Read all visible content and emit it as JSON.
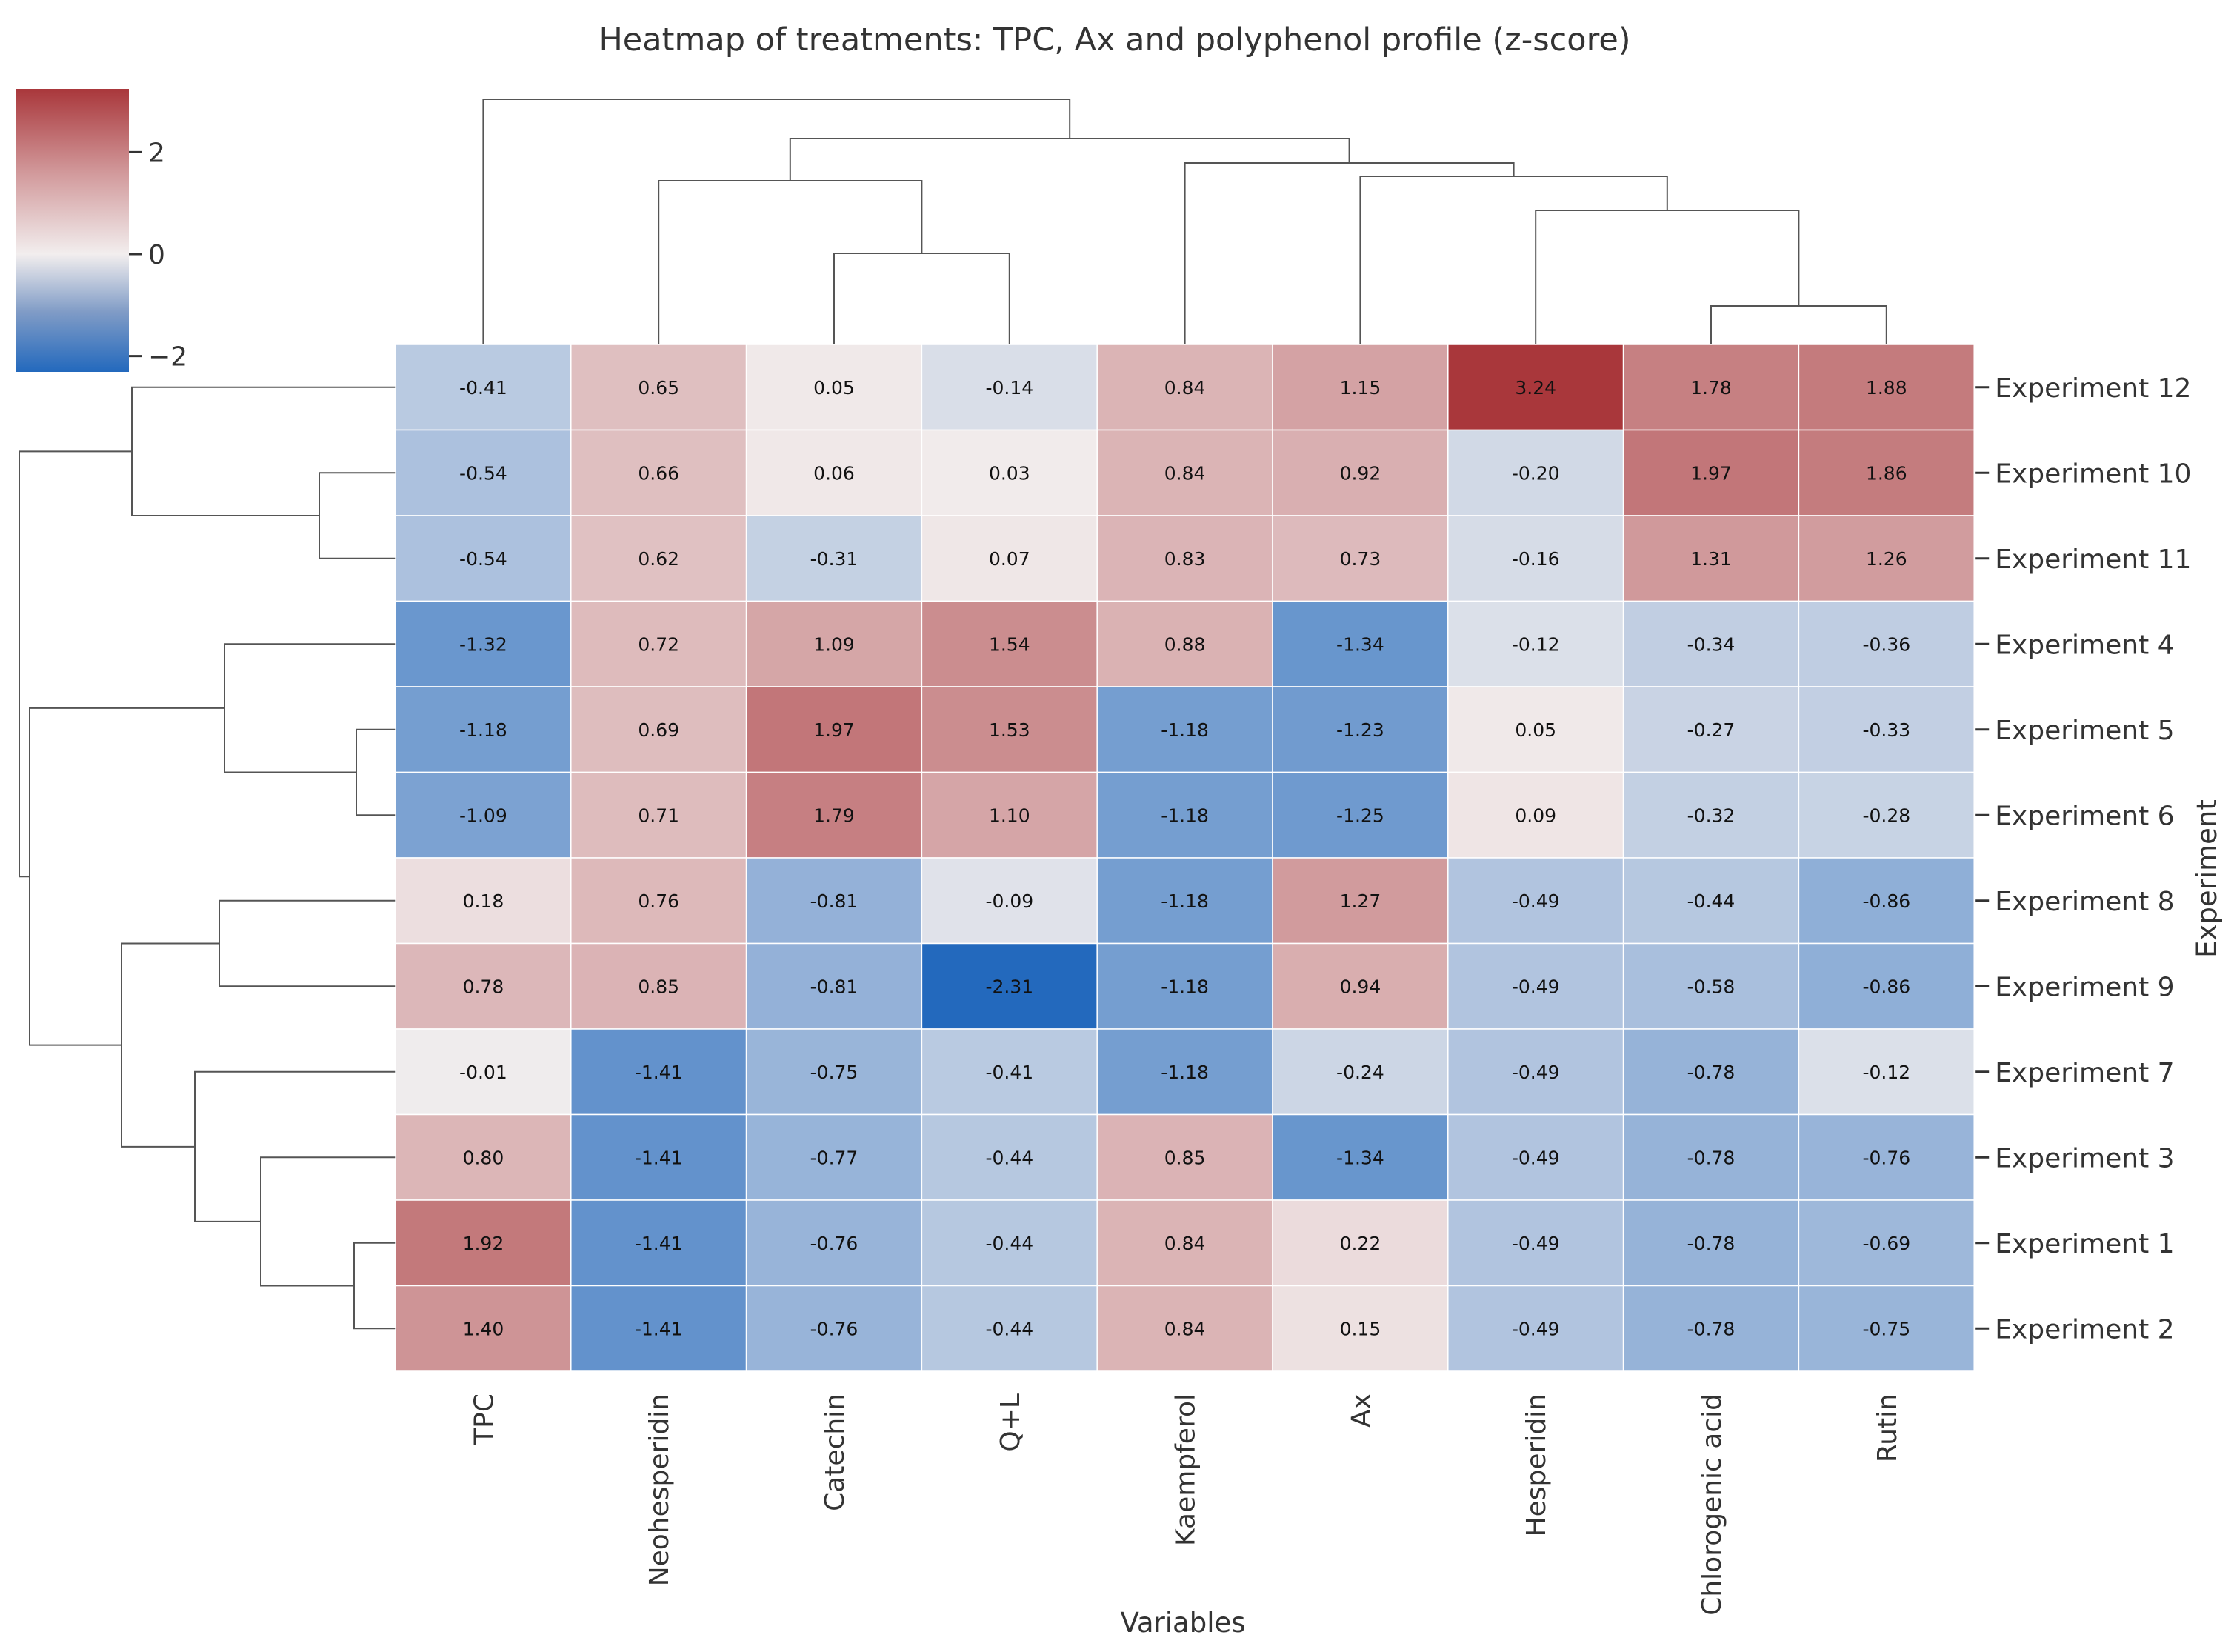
{
  "chart_data": {
    "type": "heatmap",
    "title": "Heatmap of treatments: TPC, Ax and polyphenol profile (z-score)",
    "xlabel": "Variables",
    "ylabel": "Experiment",
    "columns": [
      "TPC",
      "Neohesperidin",
      "Catechin",
      "Q+L",
      "Kaempferol",
      "Ax",
      "Hesperidin",
      "Chlorogenic acid",
      "Rutin"
    ],
    "rows": [
      "Experiment 12",
      "Experiment 10",
      "Experiment 11",
      "Experiment 4",
      "Experiment 5",
      "Experiment 6",
      "Experiment 8",
      "Experiment 9",
      "Experiment 7",
      "Experiment 3",
      "Experiment 1",
      "Experiment 2"
    ],
    "values": [
      [
        -0.41,
        0.65,
        0.05,
        -0.14,
        0.84,
        1.15,
        3.24,
        1.78,
        1.88
      ],
      [
        -0.54,
        0.66,
        0.06,
        0.03,
        0.84,
        0.92,
        -0.2,
        1.97,
        1.86
      ],
      [
        -0.54,
        0.62,
        -0.31,
        0.07,
        0.83,
        0.73,
        -0.16,
        1.31,
        1.26
      ],
      [
        -1.32,
        0.72,
        1.09,
        1.54,
        0.88,
        -1.34,
        -0.12,
        -0.34,
        -0.36
      ],
      [
        -1.18,
        0.69,
        1.97,
        1.53,
        -1.18,
        -1.23,
        0.05,
        -0.27,
        -0.33
      ],
      [
        -1.09,
        0.71,
        1.79,
        1.1,
        -1.18,
        -1.25,
        0.09,
        -0.32,
        -0.28
      ],
      [
        0.18,
        0.76,
        -0.81,
        -0.09,
        -1.18,
        1.27,
        -0.49,
        -0.44,
        -0.86
      ],
      [
        0.78,
        0.85,
        -0.81,
        -2.31,
        -1.18,
        0.94,
        -0.49,
        -0.58,
        -0.86
      ],
      [
        -0.01,
        -1.41,
        -0.75,
        -0.41,
        -1.18,
        -0.24,
        -0.49,
        -0.78,
        -0.12
      ],
      [
        0.8,
        -1.41,
        -0.77,
        -0.44,
        0.85,
        -1.34,
        -0.49,
        -0.78,
        -0.76
      ],
      [
        1.92,
        -1.41,
        -0.76,
        -0.44,
        0.84,
        0.22,
        -0.49,
        -0.78,
        -0.69
      ],
      [
        1.4,
        -1.41,
        -0.76,
        -0.44,
        0.84,
        0.15,
        -0.49,
        -0.78,
        -0.75
      ]
    ],
    "value_labels": [
      [
        "-0.41",
        "0.65",
        "0.05",
        "-0.14",
        "0.84",
        "1.15",
        "3.24",
        "1.78",
        "1.88"
      ],
      [
        "-0.54",
        "0.66",
        "0.06",
        "0.03",
        "0.84",
        "0.92",
        "-0.20",
        "1.97",
        "1.86"
      ],
      [
        "-0.54",
        "0.62",
        "-0.31",
        "0.07",
        "0.83",
        "0.73",
        "-0.16",
        "1.31",
        "1.26"
      ],
      [
        "-1.32",
        "0.72",
        "1.09",
        "1.54",
        "0.88",
        "-1.34",
        "-0.12",
        "-0.34",
        "-0.36"
      ],
      [
        "-1.18",
        "0.69",
        "1.97",
        "1.53",
        "-1.18",
        "-1.23",
        "0.05",
        "-0.27",
        "-0.33"
      ],
      [
        "-1.09",
        "0.71",
        "1.79",
        "1.10",
        "-1.18",
        "-1.25",
        "0.09",
        "-0.32",
        "-0.28"
      ],
      [
        "0.18",
        "0.76",
        "-0.81",
        "-0.09",
        "-1.18",
        "1.27",
        "-0.49",
        "-0.44",
        "-0.86"
      ],
      [
        "0.78",
        "0.85",
        "-0.81",
        "-2.31",
        "-1.18",
        "0.94",
        "-0.49",
        "-0.58",
        "-0.86"
      ],
      [
        "-0.01",
        "-1.41",
        "-0.75",
        "-0.41",
        "-1.18",
        "-0.24",
        "-0.49",
        "-0.78",
        "-0.12"
      ],
      [
        "0.80",
        "-1.41",
        "-0.77",
        "-0.44",
        "0.85",
        "-1.34",
        "-0.49",
        "-0.78",
        "-0.76"
      ],
      [
        "1.92",
        "-1.41",
        "-0.76",
        "-0.44",
        "0.84",
        "0.22",
        "-0.49",
        "-0.78",
        "-0.69"
      ],
      [
        "1.40",
        "-1.41",
        "-0.76",
        "-0.44",
        "0.84",
        "0.15",
        "-0.49",
        "-0.78",
        "-0.75"
      ]
    ],
    "colorbar": {
      "ticks": [
        2,
        0,
        -2
      ],
      "tick_labels": [
        "2",
        "0",
        "−2"
      ],
      "range": [
        -2.31,
        3.24
      ],
      "colormap": "vlag (blue-white-red)",
      "colors": {
        "low": "#2369bd",
        "mid": "#f2eeee",
        "high": "#a9373b"
      },
      "placement": "top-left"
    },
    "row_dendrogram": true,
    "column_dendrogram": true,
    "grid": false
  }
}
